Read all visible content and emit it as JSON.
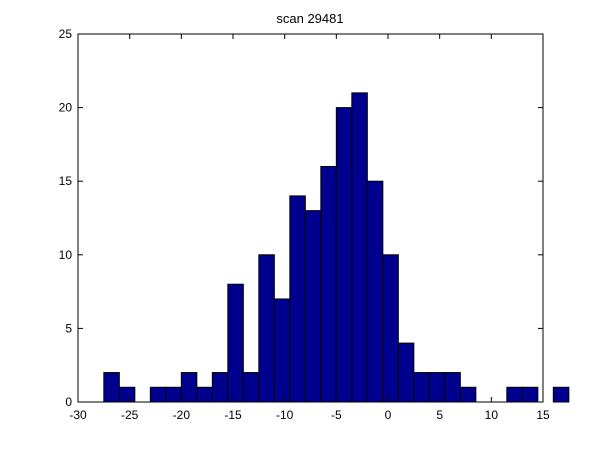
{
  "chart_data": {
    "type": "bar",
    "title": "scan 29481",
    "xlabel": "",
    "ylabel": "",
    "xlim": [
      -30,
      15
    ],
    "ylim": [
      0,
      25
    ],
    "x_ticks": [
      -30,
      -25,
      -20,
      -15,
      -10,
      -5,
      0,
      5,
      10,
      15
    ],
    "y_ticks": [
      0,
      5,
      10,
      15,
      20,
      25
    ],
    "grid": false,
    "bar_color": "#00008f",
    "bar_edge_color": "#000000",
    "bins": {
      "start": -27.5,
      "width": 1.5
    },
    "values": [
      2,
      1,
      0,
      1,
      1,
      2,
      1,
      2,
      8,
      2,
      10,
      7,
      14,
      13,
      16,
      20,
      21,
      15,
      10,
      4,
      2,
      2,
      2,
      1,
      0,
      0,
      1,
      1,
      0,
      1
    ]
  }
}
